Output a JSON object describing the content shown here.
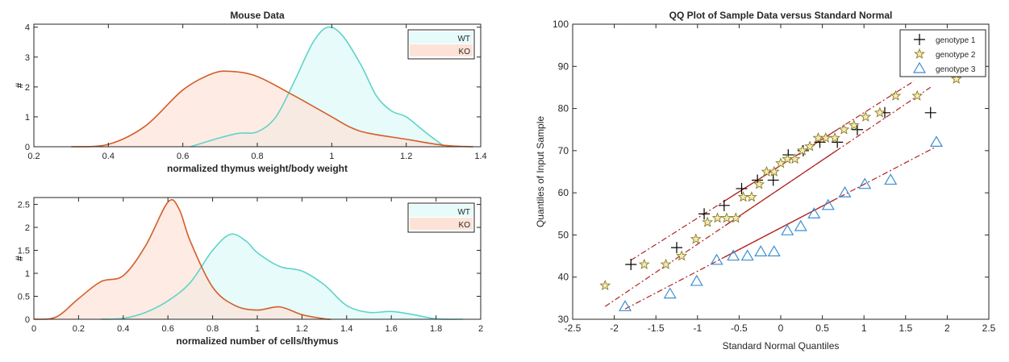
{
  "chart_data": [
    {
      "type": "area",
      "title": "Mouse Data",
      "xlabel": "normalized thymus weight/body weight",
      "ylabel": "#",
      "xlim": [
        0.2,
        1.4
      ],
      "ylim": [
        0,
        4.1
      ],
      "xticks": [
        "0.2",
        "0.4",
        "0.6",
        "0.8",
        "1",
        "1.2",
        "1.4"
      ],
      "yticks": [
        "0",
        "1",
        "2",
        "3",
        "4"
      ],
      "legend_placement": "top-right",
      "series": [
        {
          "name": "WT",
          "color": "#5fd3c9",
          "fill": "#e6fbfa",
          "x": [
            0.62,
            0.7,
            0.75,
            0.8,
            0.85,
            0.9,
            0.95,
            0.99,
            1.03,
            1.08,
            1.12,
            1.16,
            1.2,
            1.25,
            1.3
          ],
          "y": [
            0,
            0.3,
            0.45,
            0.5,
            1.0,
            2.2,
            3.5,
            4.0,
            3.7,
            2.7,
            1.7,
            1.2,
            1.0,
            0.5,
            0.03
          ]
        },
        {
          "name": "KO",
          "color": "#d35f2a",
          "fill": "#fde3d7",
          "x": [
            0.3,
            0.4,
            0.5,
            0.6,
            0.68,
            0.73,
            0.8,
            0.9,
            1.0,
            1.05,
            1.1,
            1.2,
            1.3,
            1.38
          ],
          "y": [
            0,
            0.08,
            0.7,
            1.9,
            2.45,
            2.52,
            2.35,
            1.7,
            1.0,
            0.65,
            0.45,
            0.25,
            0.05,
            0
          ]
        }
      ]
    },
    {
      "type": "area",
      "title": "",
      "xlabel": "normalized number of cells/thymus",
      "ylabel": "#",
      "xlim": [
        0,
        2
      ],
      "ylim": [
        0,
        2.65
      ],
      "xticks": [
        "0",
        "0.2",
        "0.4",
        "0.6",
        "0.8",
        "1",
        "1.2",
        "1.4",
        "1.6",
        "1.8",
        "2"
      ],
      "yticks": [
        "0",
        "0.5",
        "1",
        "1.5",
        "2",
        "2.5"
      ],
      "legend_placement": "top-right",
      "series": [
        {
          "name": "WT",
          "color": "#5fd3c9",
          "fill": "#e6fbfa",
          "x": [
            0.3,
            0.4,
            0.5,
            0.6,
            0.7,
            0.8,
            0.88,
            0.95,
            1.0,
            1.1,
            1.2,
            1.3,
            1.4,
            1.5,
            1.6,
            1.7,
            1.8,
            1.92
          ],
          "y": [
            0,
            0.02,
            0.15,
            0.4,
            0.8,
            1.5,
            1.85,
            1.7,
            1.45,
            1.15,
            1.05,
            0.75,
            0.3,
            0.15,
            0.17,
            0.1,
            0.01,
            0
          ]
        },
        {
          "name": "KO",
          "color": "#d35f2a",
          "fill": "#fde3d7",
          "x": [
            0,
            0.1,
            0.2,
            0.3,
            0.4,
            0.5,
            0.6,
            0.65,
            0.7,
            0.8,
            0.9,
            1.0,
            1.1,
            1.2,
            1.3,
            1.33
          ],
          "y": [
            0,
            0.05,
            0.45,
            0.82,
            0.95,
            1.6,
            2.55,
            2.4,
            1.7,
            0.7,
            0.3,
            0.2,
            0.27,
            0.1,
            0.01,
            0
          ]
        }
      ]
    },
    {
      "type": "scatter",
      "title": "QQ Plot of Sample Data versus Standard Normal",
      "xlabel": "Standard Normal Quantiles",
      "ylabel": "Quantiles of Input Sample",
      "xlim": [
        -2.5,
        2.5
      ],
      "ylim": [
        30,
        100
      ],
      "xticks": [
        "-2.5",
        "-2",
        "-1.5",
        "-1",
        "-0.5",
        "0",
        "0.5",
        "1",
        "1.5",
        "2",
        "2.5"
      ],
      "yticks": [
        "30",
        "40",
        "50",
        "60",
        "70",
        "80",
        "90",
        "100"
      ],
      "legend_placement": "top-right",
      "reference_line_color": "#b22222",
      "series": [
        {
          "name": "genotype 1",
          "marker": "plus",
          "color": "#000000",
          "x": [
            -1.8,
            -1.25,
            -0.92,
            -0.68,
            -0.47,
            -0.28,
            -0.09,
            0.09,
            0.27,
            0.47,
            0.68,
            0.92,
            1.25,
            1.8
          ],
          "y": [
            43,
            47,
            55,
            57,
            61,
            63,
            63,
            69,
            70,
            72,
            72,
            75,
            79,
            79
          ],
          "fit": {
            "slope": 12.5,
            "intercept": 66.5,
            "x_range": [
              -1.8,
              1.6
            ]
          }
        },
        {
          "name": "genotype 2",
          "marker": "star",
          "color": "#c8b44a",
          "x": [
            -2.11,
            -1.64,
            -1.38,
            -1.19,
            -1.02,
            -0.88,
            -0.76,
            -0.65,
            -0.54,
            -0.45,
            -0.35,
            -0.26,
            -0.17,
            -0.08,
            0,
            0.08,
            0.17,
            0.26,
            0.35,
            0.45,
            0.54,
            0.65,
            0.76,
            0.88,
            1.02,
            1.19,
            1.38,
            1.64,
            2.11
          ],
          "y": [
            38,
            43,
            43,
            45,
            49,
            53,
            54,
            54,
            54,
            59,
            59,
            62,
            65,
            65,
            67,
            68,
            68,
            70,
            71,
            73,
            73,
            73,
            75,
            76,
            78,
            79,
            83,
            83,
            87
          ],
          "fit": {
            "slope": 13.3,
            "intercept": 61.1,
            "x_range": [
              -2.11,
              1.8
            ]
          }
        },
        {
          "name": "genotype 3",
          "marker": "triangle",
          "color": "#3c8fd0",
          "x": [
            -1.87,
            -1.33,
            -1.01,
            -0.77,
            -0.57,
            -0.4,
            -0.24,
            -0.08,
            0.08,
            0.24,
            0.4,
            0.57,
            0.77,
            1.01,
            1.32,
            1.87
          ],
          "y": [
            33,
            36,
            39,
            44,
            45,
            45,
            46,
            46,
            51,
            52,
            55,
            57,
            60,
            62,
            63,
            72
          ],
          "fit": {
            "slope": 10.3,
            "intercept": 51.7,
            "x_range": [
              -1.87,
              1.87
            ]
          }
        }
      ]
    }
  ]
}
